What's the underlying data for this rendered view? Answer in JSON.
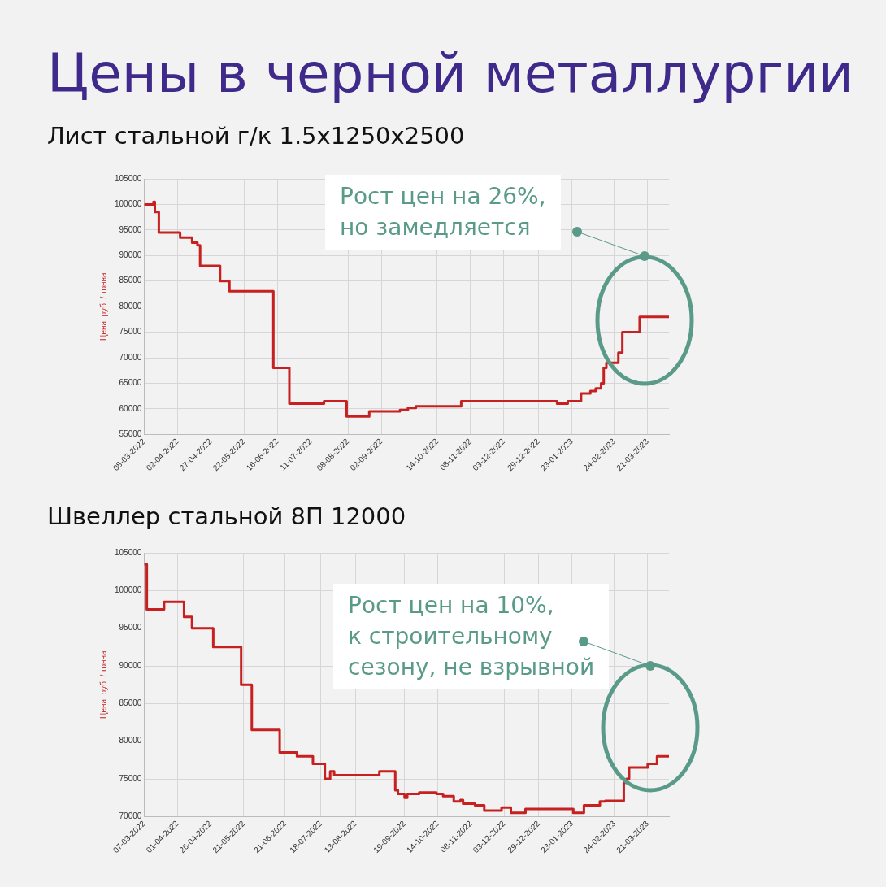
{
  "chart_data": [
    {
      "type": "step",
      "title": "Цены в черной металлургии",
      "subtitle": "Лист стальной г/к 1.5x1250x2500",
      "ylabel": "Цена, руб. / тонна",
      "annotations": [
        "Рост цен на 26%,\nно замедляется"
      ],
      "x": [
        "2022-03-08",
        "2022-03-15",
        "2022-03-16",
        "2022-03-19",
        "2022-04-04",
        "2022-04-13",
        "2022-04-17",
        "2022-04-19",
        "2022-05-04",
        "2022-05-11",
        "2022-06-13",
        "2022-06-25",
        "2022-07-21",
        "2022-08-07",
        "2022-08-24",
        "2022-09-10",
        "2022-09-16",
        "2022-09-22",
        "2022-09-28",
        "2022-11-01",
        "2023-01-12",
        "2023-01-20",
        "2023-01-30",
        "2023-02-06",
        "2023-02-10",
        "2023-02-14",
        "2023-02-16",
        "2023-02-18",
        "2023-02-27",
        "2023-03-02",
        "2023-03-15",
        "2023-04-06"
      ],
      "series": [
        {
          "color": "#c62020",
          "values": [
            100000,
            100500,
            98500,
            94500,
            93500,
            92500,
            92000,
            88000,
            85000,
            83000,
            68000,
            61000,
            61500,
            58500,
            59500,
            59500,
            59800,
            60200,
            60500,
            61500,
            61000,
            61500,
            63000,
            63500,
            64000,
            65000,
            68000,
            69000,
            71000,
            75000,
            78000,
            78000
          ]
        }
      ],
      "xlim": [
        "2022-03-08",
        "2023-04-06"
      ],
      "xticks": [
        {
          "value": "2022-03-08",
          "label": "08-03-2022"
        },
        {
          "value": "2022-04-02",
          "label": "02-04-2022"
        },
        {
          "value": "2022-04-27",
          "label": "27-04-2022"
        },
        {
          "value": "2022-05-22",
          "label": "22-05-2022"
        },
        {
          "value": "2022-06-16",
          "label": "16-06-2022"
        },
        {
          "value": "2022-07-11",
          "label": "11-07-2022"
        },
        {
          "value": "2022-08-08",
          "label": "08-08-2022"
        },
        {
          "value": "2022-09-02",
          "label": "02-09-2022"
        },
        {
          "value": "2022-10-14",
          "label": "14-10-2022"
        },
        {
          "value": "2022-11-08",
          "label": "08-11-2022"
        },
        {
          "value": "2022-12-03",
          "label": "03-12-2022"
        },
        {
          "value": "2022-12-29",
          "label": "29-12-2022"
        },
        {
          "value": "2023-01-23",
          "label": "23-01-2023"
        },
        {
          "value": "2023-02-24",
          "label": "24-02-2023"
        },
        {
          "value": "2023-03-21",
          "label": "21-03-2023"
        }
      ],
      "ylim": [
        55000,
        105000
      ],
      "yticks": [
        55000,
        60000,
        65000,
        70000,
        75000,
        80000,
        85000,
        90000,
        95000,
        100000,
        105000
      ],
      "grid": true,
      "legend": false,
      "marker": "none",
      "line_style": "solid"
    },
    {
      "type": "step",
      "title": "Швеллер стальной 8П 12000",
      "ylabel": "Цена, руб. / тонна",
      "annotations": [
        "Рост цен на 10%,\nк строительному\nсезону, не взрывной"
      ],
      "x": [
        "2022-03-07",
        "2022-03-09",
        "2022-03-22",
        "2022-04-06",
        "2022-04-12",
        "2022-04-28",
        "2022-05-19",
        "2022-05-27",
        "2022-06-17",
        "2022-06-30",
        "2022-07-12",
        "2022-07-21",
        "2022-07-25",
        "2022-07-28",
        "2022-08-31",
        "2022-09-12",
        "2022-09-14",
        "2022-09-19",
        "2022-09-21",
        "2022-09-30",
        "2022-10-13",
        "2022-10-18",
        "2022-10-26",
        "2022-10-31",
        "2022-11-02",
        "2022-11-11",
        "2022-11-18",
        "2022-12-01",
        "2022-12-08",
        "2022-12-19",
        "2023-01-24",
        "2023-02-01",
        "2023-02-06",
        "2023-02-13",
        "2023-02-17",
        "2023-03-01",
        "2023-03-03",
        "2023-03-05",
        "2023-03-07",
        "2023-03-21",
        "2023-03-28",
        "2023-04-06"
      ],
      "series": [
        {
          "color": "#c62020",
          "values": [
            103500,
            97500,
            98500,
            96500,
            95000,
            92500,
            87500,
            81500,
            78500,
            78000,
            77000,
            75000,
            76000,
            75500,
            76000,
            73500,
            73000,
            72500,
            73000,
            73200,
            73000,
            72700,
            72000,
            72200,
            71700,
            71500,
            70800,
            71200,
            70500,
            71000,
            70500,
            71500,
            71500,
            72000,
            72100,
            72100,
            74500,
            75000,
            76500,
            77000,
            78000,
            78000
          ]
        }
      ],
      "xlim": [
        "2022-03-07",
        "2023-04-06"
      ],
      "xticks": [
        {
          "value": "2022-03-07",
          "label": "07-03-2022"
        },
        {
          "value": "2022-04-01",
          "label": "01-04-2022"
        },
        {
          "value": "2022-04-26",
          "label": "26-04-2022"
        },
        {
          "value": "2022-05-21",
          "label": "21-05-2022"
        },
        {
          "value": "2022-06-21",
          "label": "21-06-2022"
        },
        {
          "value": "2022-07-18",
          "label": "18-07-2022"
        },
        {
          "value": "2022-08-13",
          "label": "13-08-2022"
        },
        {
          "value": "2022-09-19",
          "label": "19-09-2022"
        },
        {
          "value": "2022-10-14",
          "label": "14-10-2022"
        },
        {
          "value": "2022-11-08",
          "label": "08-11-2022"
        },
        {
          "value": "2022-12-03",
          "label": "03-12-2022"
        },
        {
          "value": "2022-12-29",
          "label": "29-12-2022"
        },
        {
          "value": "2023-01-23",
          "label": "23-01-2023"
        },
        {
          "value": "2023-02-24",
          "label": "24-02-2023"
        },
        {
          "value": "2023-03-21",
          "label": "21-03-2023"
        }
      ],
      "ylim": [
        70000,
        105000
      ],
      "yticks": [
        70000,
        75000,
        80000,
        85000,
        90000,
        95000,
        100000,
        105000
      ],
      "grid": true,
      "legend": false,
      "marker": "none",
      "line_style": "solid"
    }
  ]
}
